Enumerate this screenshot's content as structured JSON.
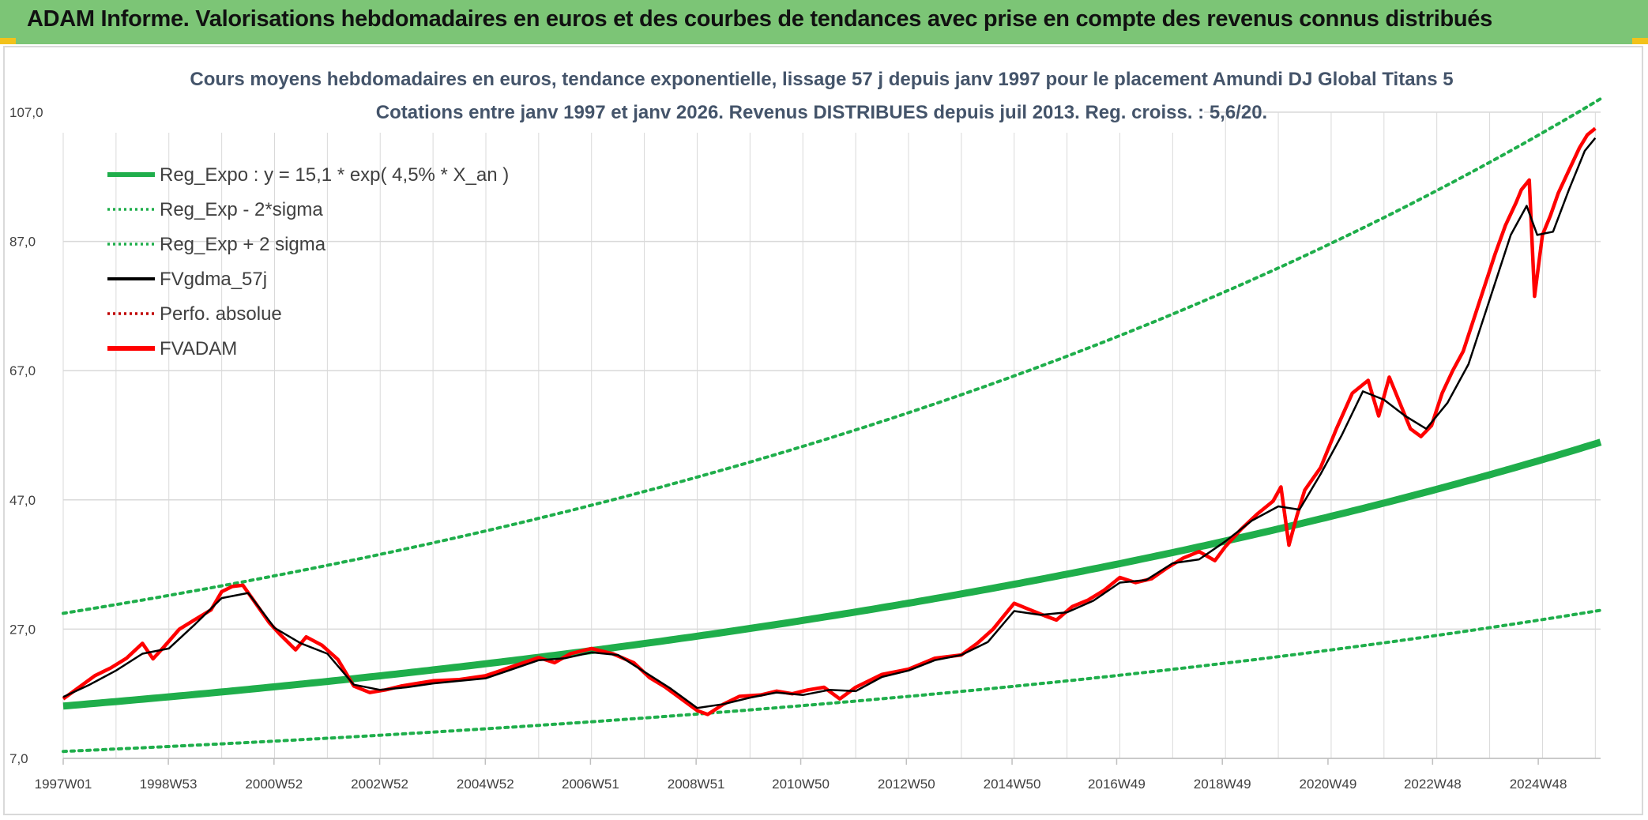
{
  "header": {
    "title": "ADAM Informe. Valorisations hebdomadaires en euros et des courbes de tendances avec prise en compte des revenus connus distribués"
  },
  "colors": {
    "banner": "#7cc576",
    "banner_corner": "#f2c21b",
    "trend": "#1fae4b",
    "smoothed": "#000000",
    "fvadam": "#ff0000",
    "perfo": "#c00000",
    "grid": "#d9d9d9"
  },
  "chart_data": {
    "type": "line",
    "title": "Cours moyens hebdomadaires en euros, tendance exponentielle, lissage 57 j depuis janv 1997 pour le placement Amundi DJ Global Titans 5",
    "subtitle": "Cotations entre janv 1997 et janv 2026. Revenus DISTRIBUES depuis juil 2013. Reg. croiss. : 5,6/20.",
    "xlabel": "",
    "ylabel": "",
    "ylim": [
      7,
      107
    ],
    "xlim": [
      1997.0,
      2026.1
    ],
    "y_ticks": [
      "7,0",
      "27,0",
      "47,0",
      "67,0",
      "87,0",
      "107,0"
    ],
    "y_tick_values": [
      7,
      27,
      47,
      67,
      87,
      107
    ],
    "x_ticks": [
      "1997W01",
      "1998W53",
      "2000W52",
      "2002W52",
      "2004W52",
      "2006W51",
      "2008W51",
      "2010W50",
      "2012W50",
      "2014W50",
      "2016W49",
      "2018W49",
      "2020W49",
      "2022W48",
      "2024W48"
    ],
    "x_tick_values": [
      1997.0,
      1998.99,
      2000.99,
      2002.99,
      2004.99,
      2006.98,
      2008.98,
      2010.96,
      2012.96,
      2014.96,
      2016.94,
      2018.94,
      2020.94,
      2022.92,
      2024.92
    ],
    "legend": {
      "position": "top-left",
      "entries": [
        {
          "label": "Reg_Expo : y = 15,1 * exp( 4,5% *  X_an )",
          "style": "solid-thick",
          "color": "#1fae4b"
        },
        {
          "label": "Reg_Exp - 2*sigma",
          "style": "dotted",
          "color": "#1fae4b"
        },
        {
          "label": "Reg_Exp + 2 sigma",
          "style": "dotted",
          "color": "#1fae4b"
        },
        {
          "label": "FVgdma_57j",
          "style": "solid",
          "color": "#000000"
        },
        {
          "label": "Perfo. absolue",
          "style": "dotted",
          "color": "#c00000"
        },
        {
          "label": "FVADAM",
          "style": "solid-thick",
          "color": "#ff0000"
        }
      ]
    },
    "regression": {
      "a": 15.1,
      "rate": 0.045,
      "lower_factor": 0.535,
      "upper_factor": 1.95
    },
    "series": [
      {
        "name": "FVADAM",
        "x": [
          1997.0,
          1997.3,
          1997.6,
          1997.9,
          1998.2,
          1998.5,
          1998.7,
          1998.9,
          1999.2,
          1999.5,
          1999.8,
          2000.0,
          2000.2,
          2000.4,
          2000.6,
          2000.9,
          2001.1,
          2001.4,
          2001.6,
          2001.9,
          2002.2,
          2002.5,
          2002.8,
          2003.1,
          2003.4,
          2003.7,
          2004.0,
          2004.5,
          2005.0,
          2005.5,
          2006.0,
          2006.3,
          2006.6,
          2007.0,
          2007.4,
          2007.8,
          2008.1,
          2008.4,
          2008.7,
          2009.0,
          2009.2,
          2009.5,
          2009.8,
          2010.2,
          2010.5,
          2010.8,
          2011.1,
          2011.4,
          2011.7,
          2012.0,
          2012.5,
          2013.0,
          2013.5,
          2014.0,
          2014.3,
          2014.6,
          2014.8,
          2015.0,
          2015.3,
          2015.6,
          2015.8,
          2016.1,
          2016.4,
          2016.7,
          2017.0,
          2017.3,
          2017.6,
          2017.9,
          2018.2,
          2018.5,
          2018.8,
          2019.0,
          2019.3,
          2019.6,
          2019.9,
          2020.05,
          2020.2,
          2020.35,
          2020.5,
          2020.8,
          2021.1,
          2021.4,
          2021.7,
          2021.9,
          2022.1,
          2022.3,
          2022.5,
          2022.7,
          2022.9,
          2023.1,
          2023.3,
          2023.5,
          2023.7,
          2023.9,
          2024.1,
          2024.3,
          2024.5,
          2024.6,
          2024.75,
          2024.85,
          2025.0,
          2025.15,
          2025.3,
          2025.5,
          2025.7,
          2025.85,
          2026.0
        ],
        "values": [
          16.2,
          18.0,
          19.8,
          21.0,
          22.5,
          24.8,
          22.4,
          24.2,
          27.0,
          28.5,
          30.0,
          32.8,
          33.6,
          33.8,
          31.5,
          28.0,
          26.2,
          23.8,
          25.8,
          24.5,
          22.3,
          18.2,
          17.2,
          17.6,
          18.2,
          18.6,
          19.0,
          19.2,
          19.8,
          21.2,
          22.6,
          21.8,
          23.2,
          24.0,
          23.2,
          21.8,
          19.5,
          18.0,
          16.2,
          14.4,
          13.8,
          15.4,
          16.6,
          16.8,
          17.4,
          17.0,
          17.6,
          18.0,
          16.2,
          18.0,
          20.0,
          20.8,
          22.5,
          23.0,
          24.8,
          27.0,
          29.0,
          31.0,
          30.0,
          29.0,
          28.4,
          30.5,
          31.5,
          33.0,
          35.0,
          34.2,
          34.8,
          36.5,
          38.0,
          39.0,
          37.6,
          39.8,
          42.5,
          44.8,
          46.8,
          49.0,
          40.0,
          44.5,
          48.5,
          52.0,
          58.0,
          63.5,
          65.5,
          60.0,
          66.0,
          62.0,
          58.0,
          56.8,
          58.5,
          63.5,
          67.0,
          70.0,
          75.0,
          80.0,
          85.0,
          89.5,
          93.0,
          95.0,
          96.5,
          78.5,
          88.0,
          91.0,
          94.5,
          98.0,
          101.5,
          103.5,
          104.5
        ]
      },
      {
        "name": "FVgdma_57j",
        "x": [
          1997.0,
          1997.5,
          1998.0,
          1998.5,
          1999.0,
          1999.5,
          2000.0,
          2000.5,
          2001.0,
          2001.5,
          2002.0,
          2002.5,
          2003.0,
          2003.5,
          2004.0,
          2005.0,
          2006.0,
          2006.5,
          2007.0,
          2007.5,
          2008.0,
          2008.5,
          2009.0,
          2009.5,
          2010.0,
          2010.5,
          2011.0,
          2011.5,
          2012.0,
          2012.5,
          2013.0,
          2013.5,
          2014.0,
          2014.5,
          2015.0,
          2015.5,
          2016.0,
          2016.5,
          2017.0,
          2017.5,
          2018.0,
          2018.5,
          2019.0,
          2019.5,
          2020.0,
          2020.4,
          2020.8,
          2021.2,
          2021.6,
          2022.0,
          2022.4,
          2022.8,
          2023.2,
          2023.6,
          2024.0,
          2024.4,
          2024.7,
          2024.9,
          2025.2,
          2025.5,
          2025.8,
          2026.0
        ],
        "values": [
          16.5,
          18.4,
          20.6,
          23.2,
          24.0,
          27.8,
          31.8,
          32.6,
          27.2,
          24.8,
          23.2,
          18.4,
          17.6,
          18.0,
          18.6,
          19.4,
          22.2,
          22.5,
          23.4,
          23.0,
          20.4,
          17.8,
          14.8,
          15.4,
          16.4,
          17.2,
          16.8,
          17.6,
          17.4,
          19.6,
          20.6,
          22.2,
          23.0,
          25.0,
          29.8,
          29.2,
          29.6,
          31.4,
          34.2,
          34.6,
          37.2,
          37.8,
          40.6,
          43.8,
          46.0,
          45.5,
          51.0,
          57.0,
          63.8,
          62.5,
          60.0,
          58.0,
          62.0,
          68.0,
          78.0,
          88.0,
          92.5,
          88.0,
          88.5,
          95.0,
          101.0,
          103.0
        ]
      }
    ]
  }
}
